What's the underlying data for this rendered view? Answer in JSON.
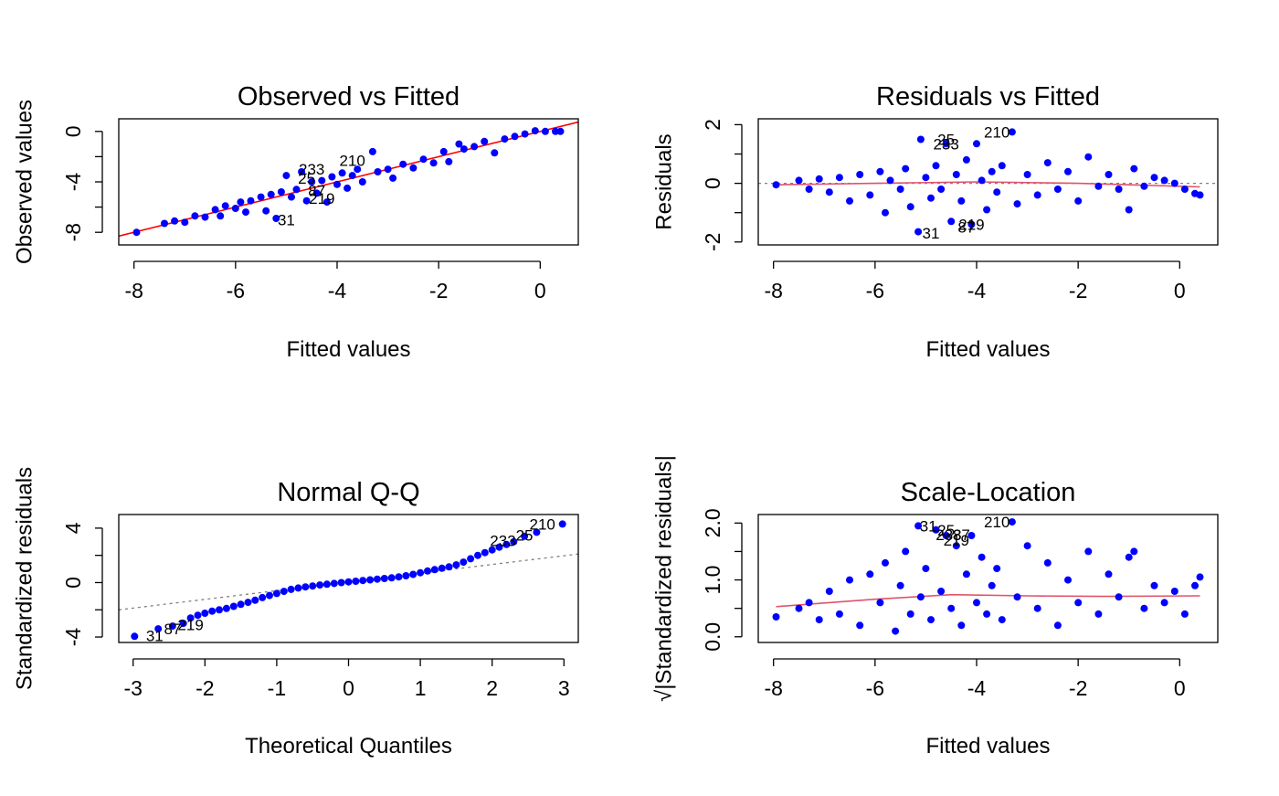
{
  "colors": {
    "points": "#0000FF",
    "fit_line": "#FF0000",
    "smooth": "#DF536B",
    "reference": "#808080",
    "frame": "#000000"
  },
  "chart_data": [
    {
      "id": "ovf",
      "type": "scatter",
      "title": "Observed vs Fitted",
      "xlabel": "Fitted values",
      "ylabel": "Observed values",
      "xlim": [
        -8.3,
        0.75
      ],
      "ylim": [
        -9.0,
        1.0
      ],
      "xticks": [
        -8,
        -6,
        -4,
        -2,
        0
      ],
      "yticks": [
        -8,
        -4,
        0
      ],
      "ytick_minor": [
        -6,
        -2
      ],
      "grid": false,
      "lines": [
        {
          "kind": "fit",
          "x": [
            -8.3,
            0.75
          ],
          "y": [
            -8.3,
            0.75
          ]
        }
      ],
      "annotations": [
        {
          "text": "210",
          "x": -3.7,
          "y": -2.3
        },
        {
          "text": "233",
          "x": -4.5,
          "y": -3.0
        },
        {
          "text": "25",
          "x": -4.6,
          "y": -3.7
        },
        {
          "text": "87",
          "x": -4.4,
          "y": -4.7
        },
        {
          "text": "219",
          "x": -4.3,
          "y": -5.3
        },
        {
          "text": "31",
          "x": -5.0,
          "y": -7.0
        }
      ],
      "points": [
        {
          "x": -7.95,
          "y": -8.0
        },
        {
          "x": -7.4,
          "y": -7.3
        },
        {
          "x": -7.2,
          "y": -7.1
        },
        {
          "x": -7.0,
          "y": -7.2
        },
        {
          "x": -6.8,
          "y": -6.7
        },
        {
          "x": -6.6,
          "y": -6.8
        },
        {
          "x": -6.4,
          "y": -6.2
        },
        {
          "x": -6.3,
          "y": -6.7
        },
        {
          "x": -6.2,
          "y": -5.9
        },
        {
          "x": -6.0,
          "y": -6.1
        },
        {
          "x": -5.9,
          "y": -5.6
        },
        {
          "x": -5.8,
          "y": -6.4
        },
        {
          "x": -5.7,
          "y": -5.5
        },
        {
          "x": -5.5,
          "y": -5.2
        },
        {
          "x": -5.4,
          "y": -6.3
        },
        {
          "x": -5.3,
          "y": -5.0
        },
        {
          "x": -5.2,
          "y": -6.9
        },
        {
          "x": -5.1,
          "y": -4.8
        },
        {
          "x": -5.0,
          "y": -3.5
        },
        {
          "x": -4.9,
          "y": -5.2
        },
        {
          "x": -4.8,
          "y": -4.6
        },
        {
          "x": -4.7,
          "y": -3.2
        },
        {
          "x": -4.6,
          "y": -5.5
        },
        {
          "x": -4.5,
          "y": -4.0
        },
        {
          "x": -4.4,
          "y": -4.9
        },
        {
          "x": -4.3,
          "y": -3.9
        },
        {
          "x": -4.2,
          "y": -5.6
        },
        {
          "x": -4.1,
          "y": -3.6
        },
        {
          "x": -4.0,
          "y": -4.2
        },
        {
          "x": -3.9,
          "y": -3.3
        },
        {
          "x": -3.8,
          "y": -4.5
        },
        {
          "x": -3.7,
          "y": -3.5
        },
        {
          "x": -3.6,
          "y": -3.0
        },
        {
          "x": -3.5,
          "y": -4.0
        },
        {
          "x": -3.3,
          "y": -1.6
        },
        {
          "x": -3.2,
          "y": -3.2
        },
        {
          "x": -3.0,
          "y": -3.0
        },
        {
          "x": -2.9,
          "y": -3.7
        },
        {
          "x": -2.7,
          "y": -2.6
        },
        {
          "x": -2.5,
          "y": -2.9
        },
        {
          "x": -2.3,
          "y": -2.2
        },
        {
          "x": -2.1,
          "y": -2.5
        },
        {
          "x": -1.9,
          "y": -1.6
        },
        {
          "x": -1.8,
          "y": -2.4
        },
        {
          "x": -1.6,
          "y": -1.0
        },
        {
          "x": -1.5,
          "y": -1.4
        },
        {
          "x": -1.3,
          "y": -1.2
        },
        {
          "x": -1.1,
          "y": -0.8
        },
        {
          "x": -0.9,
          "y": -1.7
        },
        {
          "x": -0.7,
          "y": -0.6
        },
        {
          "x": -0.5,
          "y": -0.4
        },
        {
          "x": -0.3,
          "y": -0.2
        },
        {
          "x": -0.1,
          "y": 0.05
        },
        {
          "x": 0.1,
          "y": 0.0
        },
        {
          "x": 0.3,
          "y": 0.0
        },
        {
          "x": 0.4,
          "y": 0.0
        }
      ]
    },
    {
      "id": "rvf",
      "type": "scatter",
      "title": "Residuals vs Fitted",
      "xlabel": "Fitted values",
      "ylabel": "Residuals",
      "xlim": [
        -8.3,
        0.75
      ],
      "ylim": [
        -2.1,
        2.2
      ],
      "xticks": [
        -8,
        -6,
        -4,
        -2,
        0
      ],
      "yticks": [
        -2,
        0,
        2
      ],
      "ytick_minor": [
        -1,
        1
      ],
      "grid": false,
      "lines": [
        {
          "kind": "reference",
          "x": [
            -8.3,
            0.75
          ],
          "y": [
            0,
            0
          ]
        },
        {
          "kind": "smooth",
          "x": [
            -7.95,
            -6.0,
            -4.0,
            -2.0,
            -1.0,
            0.4
          ],
          "y": [
            -0.05,
            0.0,
            0.05,
            0.0,
            -0.05,
            -0.12
          ]
        }
      ],
      "annotations": [
        {
          "text": "210",
          "x": -3.6,
          "y": 1.75
        },
        {
          "text": "25",
          "x": -4.6,
          "y": 1.5
        },
        {
          "text": "233",
          "x": -4.6,
          "y": 1.35
        },
        {
          "text": "219",
          "x": -4.1,
          "y": -1.4
        },
        {
          "text": "87",
          "x": -4.2,
          "y": -1.5
        },
        {
          "text": "31",
          "x": -4.9,
          "y": -1.7
        }
      ],
      "points": [
        {
          "x": -7.95,
          "y": -0.05
        },
        {
          "x": -7.5,
          "y": 0.1
        },
        {
          "x": -7.3,
          "y": -0.2
        },
        {
          "x": -7.1,
          "y": 0.15
        },
        {
          "x": -6.9,
          "y": -0.3
        },
        {
          "x": -6.7,
          "y": 0.2
        },
        {
          "x": -6.5,
          "y": -0.6
        },
        {
          "x": -6.3,
          "y": 0.3
        },
        {
          "x": -6.1,
          "y": -0.4
        },
        {
          "x": -5.9,
          "y": 0.4
        },
        {
          "x": -5.8,
          "y": -1.0
        },
        {
          "x": -5.7,
          "y": 0.1
        },
        {
          "x": -5.5,
          "y": -0.2
        },
        {
          "x": -5.4,
          "y": 0.5
        },
        {
          "x": -5.3,
          "y": -0.8
        },
        {
          "x": -5.15,
          "y": -1.65
        },
        {
          "x": -5.1,
          "y": 1.5
        },
        {
          "x": -5.0,
          "y": 0.2
        },
        {
          "x": -4.9,
          "y": -0.5
        },
        {
          "x": -4.8,
          "y": 0.6
        },
        {
          "x": -4.7,
          "y": -0.2
        },
        {
          "x": -4.6,
          "y": 1.35
        },
        {
          "x": -4.5,
          "y": -1.3
        },
        {
          "x": -4.4,
          "y": 0.3
        },
        {
          "x": -4.3,
          "y": -0.6
        },
        {
          "x": -4.2,
          "y": 0.8
        },
        {
          "x": -4.1,
          "y": -1.4
        },
        {
          "x": -4.0,
          "y": 1.35
        },
        {
          "x": -3.9,
          "y": 0.1
        },
        {
          "x": -3.8,
          "y": -0.9
        },
        {
          "x": -3.7,
          "y": 0.4
        },
        {
          "x": -3.6,
          "y": -0.3
        },
        {
          "x": -3.5,
          "y": 0.6
        },
        {
          "x": -3.3,
          "y": 1.75
        },
        {
          "x": -3.2,
          "y": -0.7
        },
        {
          "x": -3.0,
          "y": 0.3
        },
        {
          "x": -2.8,
          "y": -0.4
        },
        {
          "x": -2.6,
          "y": 0.7
        },
        {
          "x": -2.4,
          "y": -0.2
        },
        {
          "x": -2.2,
          "y": 0.4
        },
        {
          "x": -2.0,
          "y": -0.6
        },
        {
          "x": -1.8,
          "y": 0.9
        },
        {
          "x": -1.6,
          "y": -0.1
        },
        {
          "x": -1.4,
          "y": 0.3
        },
        {
          "x": -1.2,
          "y": -0.2
        },
        {
          "x": -1.0,
          "y": -0.9
        },
        {
          "x": -0.9,
          "y": 0.5
        },
        {
          "x": -0.7,
          "y": -0.1
        },
        {
          "x": -0.5,
          "y": 0.2
        },
        {
          "x": -0.3,
          "y": 0.1
        },
        {
          "x": -0.1,
          "y": 0.0
        },
        {
          "x": 0.1,
          "y": -0.2
        },
        {
          "x": 0.3,
          "y": -0.35
        },
        {
          "x": 0.4,
          "y": -0.4
        }
      ]
    },
    {
      "id": "qq",
      "type": "scatter",
      "title": "Normal Q-Q",
      "xlabel": "Theoretical Quantiles",
      "ylabel": "Standardized residuals",
      "xlim": [
        -3.2,
        3.2
      ],
      "ylim": [
        -4.4,
        5.0
      ],
      "xticks": [
        -3,
        -2,
        -1,
        0,
        1,
        2,
        3
      ],
      "yticks": [
        -4,
        0,
        4
      ],
      "ytick_minor": [
        -2,
        2
      ],
      "grid": false,
      "lines": [
        {
          "kind": "reference",
          "x": [
            -3.2,
            3.2
          ],
          "y": [
            -2.0,
            2.1
          ]
        }
      ],
      "annotations": [
        {
          "text": "210",
          "x": 2.7,
          "y": 4.3
        },
        {
          "text": "25",
          "x": 2.45,
          "y": 3.5
        },
        {
          "text": "233",
          "x": 2.15,
          "y": 3.1
        },
        {
          "text": "219",
          "x": -2.2,
          "y": -3.1
        },
        {
          "text": "87",
          "x": -2.45,
          "y": -3.4
        },
        {
          "text": "31",
          "x": -2.7,
          "y": -3.9
        }
      ],
      "points": [
        {
          "x": -2.98,
          "y": -3.95
        },
        {
          "x": -2.65,
          "y": -3.4
        },
        {
          "x": -2.45,
          "y": -3.2
        },
        {
          "x": -2.3,
          "y": -3.0
        },
        {
          "x": -2.2,
          "y": -2.6
        },
        {
          "x": -2.1,
          "y": -2.4
        },
        {
          "x": -2.0,
          "y": -2.25
        },
        {
          "x": -1.9,
          "y": -2.1
        },
        {
          "x": -1.8,
          "y": -2.0
        },
        {
          "x": -1.7,
          "y": -1.9
        },
        {
          "x": -1.6,
          "y": -1.75
        },
        {
          "x": -1.5,
          "y": -1.6
        },
        {
          "x": -1.4,
          "y": -1.45
        },
        {
          "x": -1.3,
          "y": -1.3
        },
        {
          "x": -1.2,
          "y": -1.1
        },
        {
          "x": -1.1,
          "y": -0.95
        },
        {
          "x": -1.0,
          "y": -0.8
        },
        {
          "x": -0.9,
          "y": -0.65
        },
        {
          "x": -0.8,
          "y": -0.5
        },
        {
          "x": -0.7,
          "y": -0.4
        },
        {
          "x": -0.6,
          "y": -0.32
        },
        {
          "x": -0.5,
          "y": -0.25
        },
        {
          "x": -0.4,
          "y": -0.18
        },
        {
          "x": -0.3,
          "y": -0.12
        },
        {
          "x": -0.2,
          "y": -0.06
        },
        {
          "x": -0.1,
          "y": 0.0
        },
        {
          "x": 0.0,
          "y": 0.05
        },
        {
          "x": 0.1,
          "y": 0.1
        },
        {
          "x": 0.2,
          "y": 0.15
        },
        {
          "x": 0.3,
          "y": 0.2
        },
        {
          "x": 0.4,
          "y": 0.25
        },
        {
          "x": 0.5,
          "y": 0.3
        },
        {
          "x": 0.6,
          "y": 0.35
        },
        {
          "x": 0.7,
          "y": 0.42
        },
        {
          "x": 0.8,
          "y": 0.5
        },
        {
          "x": 0.9,
          "y": 0.6
        },
        {
          "x": 1.0,
          "y": 0.72
        },
        {
          "x": 1.1,
          "y": 0.85
        },
        {
          "x": 1.2,
          "y": 0.95
        },
        {
          "x": 1.3,
          "y": 1.05
        },
        {
          "x": 1.4,
          "y": 1.15
        },
        {
          "x": 1.5,
          "y": 1.3
        },
        {
          "x": 1.6,
          "y": 1.5
        },
        {
          "x": 1.7,
          "y": 1.75
        },
        {
          "x": 1.8,
          "y": 2.0
        },
        {
          "x": 1.9,
          "y": 2.2
        },
        {
          "x": 2.0,
          "y": 2.4
        },
        {
          "x": 2.1,
          "y": 2.6
        },
        {
          "x": 2.2,
          "y": 2.8
        },
        {
          "x": 2.3,
          "y": 3.0
        },
        {
          "x": 2.45,
          "y": 3.4
        },
        {
          "x": 2.62,
          "y": 3.7
        },
        {
          "x": 2.98,
          "y": 4.3
        }
      ]
    },
    {
      "id": "sl",
      "type": "scatter",
      "title": "Scale-Location",
      "xlabel": "Fitted values",
      "ylabel": "√|Standardized residuals|",
      "xlim": [
        -8.3,
        0.75
      ],
      "ylim": [
        -0.1,
        2.15
      ],
      "xticks": [
        -8,
        -6,
        -4,
        -2,
        0
      ],
      "yticks": [
        0.0,
        1.0,
        2.0
      ],
      "ytick_labels": [
        "0.0",
        "1.0",
        "2.0"
      ],
      "ytick_minor": [
        0.5,
        1.5
      ],
      "grid": false,
      "lines": [
        {
          "kind": "smooth",
          "x": [
            -7.95,
            -6.0,
            -4.5,
            -3.0,
            -1.5,
            0.4
          ],
          "y": [
            0.53,
            0.66,
            0.74,
            0.72,
            0.71,
            0.72
          ]
        }
      ],
      "annotations": [
        {
          "text": "210",
          "x": -3.6,
          "y": 2.02
        },
        {
          "text": "31",
          "x": -4.95,
          "y": 1.95
        },
        {
          "text": "25",
          "x": -4.6,
          "y": 1.88
        },
        {
          "text": "233",
          "x": -4.55,
          "y": 1.8
        },
        {
          "text": "87",
          "x": -4.3,
          "y": 1.8
        },
        {
          "text": "219",
          "x": -4.4,
          "y": 1.7
        }
      ],
      "points": [
        {
          "x": -7.95,
          "y": 0.35
        },
        {
          "x": -7.5,
          "y": 0.5
        },
        {
          "x": -7.3,
          "y": 0.6
        },
        {
          "x": -7.1,
          "y": 0.3
        },
        {
          "x": -6.9,
          "y": 0.8
        },
        {
          "x": -6.7,
          "y": 0.4
        },
        {
          "x": -6.5,
          "y": 1.0
        },
        {
          "x": -6.3,
          "y": 0.2
        },
        {
          "x": -6.1,
          "y": 1.1
        },
        {
          "x": -5.9,
          "y": 0.6
        },
        {
          "x": -5.8,
          "y": 1.3
        },
        {
          "x": -5.6,
          "y": 0.1
        },
        {
          "x": -5.5,
          "y": 0.9
        },
        {
          "x": -5.4,
          "y": 1.5
        },
        {
          "x": -5.3,
          "y": 0.4
        },
        {
          "x": -5.15,
          "y": 1.95
        },
        {
          "x": -5.1,
          "y": 0.7
        },
        {
          "x": -5.0,
          "y": 1.2
        },
        {
          "x": -4.9,
          "y": 0.3
        },
        {
          "x": -4.8,
          "y": 1.88
        },
        {
          "x": -4.7,
          "y": 0.8
        },
        {
          "x": -4.6,
          "y": 1.78
        },
        {
          "x": -4.5,
          "y": 0.5
        },
        {
          "x": -4.4,
          "y": 1.6
        },
        {
          "x": -4.3,
          "y": 0.2
        },
        {
          "x": -4.2,
          "y": 1.1
        },
        {
          "x": -4.1,
          "y": 1.78
        },
        {
          "x": -4.0,
          "y": 0.6
        },
        {
          "x": -3.9,
          "y": 1.4
        },
        {
          "x": -3.8,
          "y": 0.4
        },
        {
          "x": -3.7,
          "y": 0.9
        },
        {
          "x": -3.6,
          "y": 1.2
        },
        {
          "x": -3.5,
          "y": 0.3
        },
        {
          "x": -3.3,
          "y": 2.02
        },
        {
          "x": -3.2,
          "y": 0.7
        },
        {
          "x": -3.0,
          "y": 1.6
        },
        {
          "x": -2.8,
          "y": 0.5
        },
        {
          "x": -2.6,
          "y": 1.3
        },
        {
          "x": -2.4,
          "y": 0.2
        },
        {
          "x": -2.2,
          "y": 1.0
        },
        {
          "x": -2.0,
          "y": 0.6
        },
        {
          "x": -1.8,
          "y": 1.5
        },
        {
          "x": -1.6,
          "y": 0.4
        },
        {
          "x": -1.4,
          "y": 1.1
        },
        {
          "x": -1.2,
          "y": 0.7
        },
        {
          "x": -1.0,
          "y": 1.4
        },
        {
          "x": -0.9,
          "y": 1.5
        },
        {
          "x": -0.7,
          "y": 0.5
        },
        {
          "x": -0.5,
          "y": 0.9
        },
        {
          "x": -0.3,
          "y": 0.6
        },
        {
          "x": -0.1,
          "y": 0.8
        },
        {
          "x": 0.1,
          "y": 0.4
        },
        {
          "x": 0.3,
          "y": 0.9
        },
        {
          "x": 0.4,
          "y": 1.05
        }
      ]
    }
  ]
}
